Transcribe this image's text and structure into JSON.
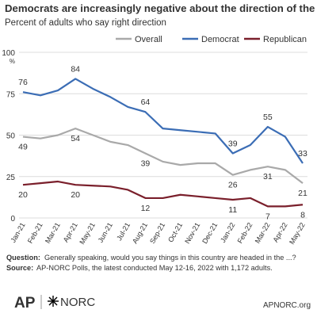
{
  "chart_data": {
    "type": "line",
    "title": "Democrats are increasingly negative about the direction of the country",
    "subtitle": "Percent of adults who say right direction",
    "y_unit": "%",
    "categories": [
      "Jan-21",
      "Feb-21",
      "Mar-21",
      "Apr-21",
      "May-21",
      "Jun-21",
      "Jul-21",
      "Aug-21",
      "Sep-21",
      "Oct-21",
      "Nov-21",
      "Dec-21",
      "Jan-22",
      "Feb-22",
      "Mar-22",
      "Apr-22",
      "May-22"
    ],
    "series": [
      {
        "name": "Overall",
        "color": "#a9a9a9",
        "values": [
          49,
          48,
          50,
          54,
          50,
          46,
          44,
          39,
          34,
          32,
          33,
          33,
          26,
          29,
          31,
          29,
          21
        ],
        "value_labels": [
          "49",
          null,
          null,
          "54",
          null,
          null,
          null,
          "39",
          null,
          null,
          null,
          null,
          "26",
          null,
          "31",
          null,
          "21"
        ]
      },
      {
        "name": "Democrat",
        "color": "#3b6db5",
        "values": [
          76,
          74,
          77,
          84,
          78,
          73,
          67,
          64,
          54,
          53,
          52,
          51,
          39,
          44,
          55,
          49,
          33
        ],
        "value_labels": [
          "76",
          null,
          null,
          "84",
          null,
          null,
          null,
          "64",
          null,
          null,
          null,
          null,
          "39",
          null,
          "55",
          null,
          "33"
        ]
      },
      {
        "name": "Republican",
        "color": "#7a1f2b",
        "values": [
          20,
          21,
          22,
          20,
          19.5,
          19,
          17,
          12,
          12,
          14,
          13,
          12,
          11,
          12,
          7,
          7,
          8
        ],
        "value_labels": [
          "20",
          null,
          null,
          "20",
          null,
          null,
          null,
          "12",
          null,
          null,
          null,
          null,
          "11",
          null,
          "7",
          null,
          "8"
        ]
      }
    ],
    "ylim": [
      0,
      100
    ],
    "yticks": [
      0,
      25,
      50,
      75,
      100
    ],
    "grid": true,
    "footer": {
      "question_label": "Question:",
      "question": "Generally speaking, would you say things in this country are headed in the ...?",
      "source_label": "Source:",
      "source": "AP-NORC Polls, the latest conducted May 12-16, 2022 with 1,172 adults."
    },
    "logos": {
      "ap": "AP",
      "norc": "NORC",
      "url": "APNORC.org"
    }
  }
}
